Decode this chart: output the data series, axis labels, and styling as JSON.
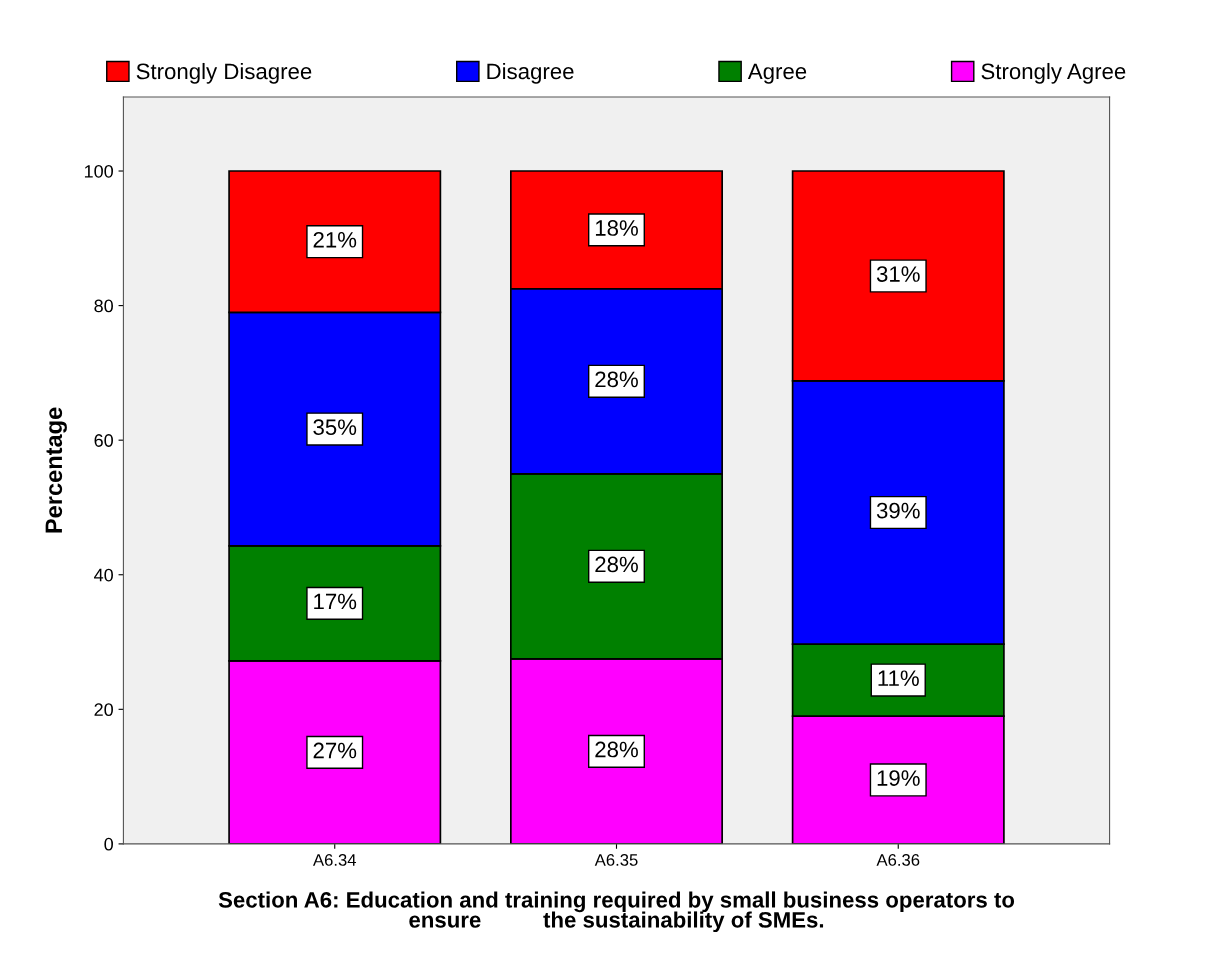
{
  "chart_data": {
    "type": "bar",
    "stacked": true,
    "xlabel": "Section A6: Education and training required by small business operators to\nensure          the sustainability of SMEs.",
    "ylabel": "Percentage",
    "categories": [
      "A6.34",
      "A6.35",
      "A6.36"
    ],
    "series": [
      {
        "name": "Strongly Agree",
        "color": "#ff00ff",
        "values": [
          27.2,
          27.5,
          19.0
        ],
        "value_labels": [
          "27%",
          "28%",
          "19%"
        ]
      },
      {
        "name": "Agree",
        "color": "#008000",
        "values": [
          17.1,
          27.5,
          10.7
        ],
        "value_labels": [
          "17%",
          "28%",
          "11%"
        ]
      },
      {
        "name": "Disagree",
        "color": "#0000ff",
        "values": [
          34.7,
          27.5,
          39.1
        ],
        "value_labels": [
          "35%",
          "28%",
          "39%"
        ]
      },
      {
        "name": "Strongly Disagree",
        "color": "#ff0000",
        "values": [
          21.0,
          17.5,
          31.2
        ],
        "value_labels": [
          "21%",
          "18%",
          "31%"
        ]
      }
    ],
    "ylim": [
      0,
      111
    ],
    "yticks": [
      0,
      20,
      40,
      60,
      80,
      100
    ],
    "grid": false,
    "legend": "top"
  }
}
